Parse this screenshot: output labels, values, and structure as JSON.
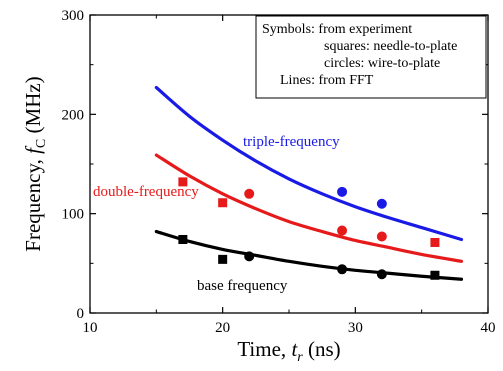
{
  "chart_data": {
    "type": "line",
    "xlabel": "Time, t_r (ns)",
    "xlabel_parts": {
      "prefix": "Time, ",
      "var": "t",
      "sub": "r",
      "suffix": " (ns)"
    },
    "ylabel": "Frequency, f_C (MHz)",
    "ylabel_parts": {
      "prefix": "Frequency, ",
      "var": "f",
      "sub": "C",
      "suffix": " (MHz)"
    },
    "xlim": [
      10,
      40
    ],
    "ylim": [
      0,
      300
    ],
    "xticks": [
      10,
      20,
      30,
      40
    ],
    "yticks": [
      0,
      100,
      200,
      300
    ],
    "x_minor_step": 5,
    "y_minor_step": 50,
    "grid": false,
    "legend_box": {
      "placement": "top-right",
      "lines": [
        "Symbols: from experiment",
        "squares: needle-to-plate",
        "circles: wire-to-plate",
        "Lines: from FFT"
      ]
    },
    "series": [
      {
        "name": "triple-frequency",
        "color": "#1a1ae6",
        "line": {
          "x": [
            15,
            17.5,
            20,
            22.5,
            25,
            27.5,
            30,
            32.5,
            35,
            38
          ],
          "y": [
            227,
            198,
            174,
            153,
            135,
            120,
            107,
            96,
            86,
            74
          ]
        },
        "squares": {
          "x": [],
          "y": []
        },
        "circles": {
          "x": [
            29,
            32
          ],
          "y": [
            122,
            110
          ]
        }
      },
      {
        "name": "double-frequency",
        "color": "#e61a1a",
        "line": {
          "x": [
            15,
            17.5,
            20,
            22.5,
            25,
            27.5,
            30,
            32.5,
            35,
            38
          ],
          "y": [
            159,
            138,
            120,
            105,
            92,
            82,
            73,
            66,
            59,
            52
          ]
        },
        "squares": {
          "x": [
            17,
            20,
            36
          ],
          "y": [
            132,
            111,
            71
          ]
        },
        "circles": {
          "x": [
            22,
            29,
            32
          ],
          "y": [
            120,
            83,
            77
          ]
        }
      },
      {
        "name": "base frequency",
        "color": "#000000",
        "line": {
          "x": [
            15,
            17.5,
            20,
            22.5,
            25,
            27.5,
            30,
            32.5,
            35,
            38
          ],
          "y": [
            82,
            72,
            64,
            58,
            52,
            47,
            43,
            40,
            37,
            34
          ]
        },
        "squares": {
          "x": [
            17,
            20,
            36
          ],
          "y": [
            74,
            54,
            38
          ]
        },
        "circles": {
          "x": [
            22,
            29,
            32
          ],
          "y": [
            57,
            44,
            39
          ]
        }
      }
    ]
  }
}
